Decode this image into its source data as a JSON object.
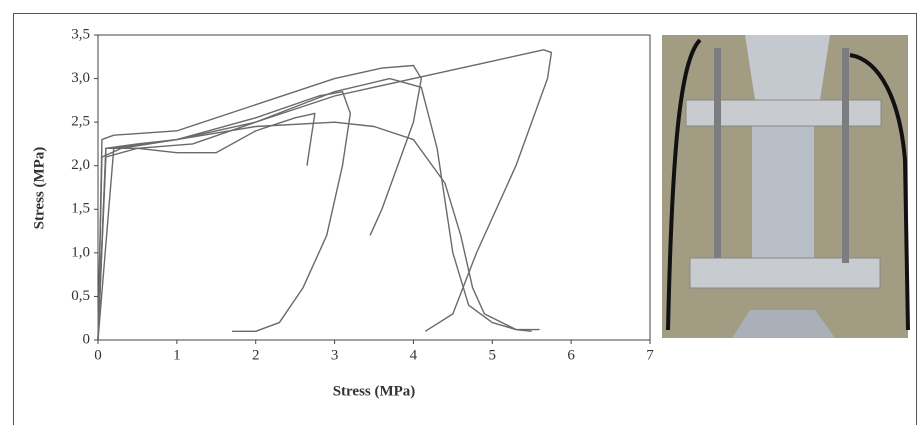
{
  "chart_data": {
    "type": "line",
    "xlabel": "Stress (MPa)",
    "ylabel": "Stress (MPa)",
    "xlim": [
      0,
      7
    ],
    "ylim": [
      0,
      3.5
    ],
    "xticks": [
      0,
      1,
      2,
      3,
      4,
      5,
      6,
      7
    ],
    "yticks": [
      0,
      {
        "value": 0.5,
        "label": "0,5"
      },
      {
        "value": 1,
        "label": "1,0"
      },
      {
        "value": 1.5,
        "label": "1,5"
      },
      {
        "value": 2,
        "label": "2,0"
      },
      {
        "value": 2.5,
        "label": "2,5"
      },
      {
        "value": 3,
        "label": "3,0"
      },
      {
        "value": 3.5,
        "label": "3,5"
      }
    ],
    "grid": false,
    "series": [
      {
        "color": "#6a6a6a",
        "x": [
          0,
          0.05,
          0.3,
          1,
          2,
          3,
          4,
          5,
          5.65,
          5.75,
          5.7,
          5.3,
          4.8,
          4.5,
          4.15
        ],
        "values": [
          0,
          2.1,
          2.2,
          2.3,
          2.5,
          2.8,
          3.0,
          3.2,
          3.33,
          3.3,
          3.0,
          2.0,
          1.0,
          0.3,
          0.1
        ]
      },
      {
        "color": "#6a6a6a",
        "x": [
          0,
          0.05,
          0.2,
          1,
          2,
          3,
          3.6,
          4.0,
          4.1,
          4.0,
          3.8,
          3.6,
          3.45
        ],
        "values": [
          0,
          2.3,
          2.35,
          2.4,
          2.7,
          3.0,
          3.12,
          3.15,
          3.0,
          2.5,
          2.0,
          1.5,
          1.2
        ]
      },
      {
        "color": "#6a6a6a",
        "x": [
          0,
          0.1,
          0.5,
          1,
          2,
          2.8,
          3.1,
          3.2,
          3.1,
          2.9,
          2.6,
          2.3,
          2.0,
          1.7
        ],
        "values": [
          0,
          2.2,
          2.25,
          2.3,
          2.55,
          2.8,
          2.85,
          2.6,
          2.0,
          1.2,
          0.6,
          0.2,
          0.1,
          0.1
        ]
      },
      {
        "color": "#6a6a6a",
        "x": [
          0,
          0.1,
          0.5,
          1.2,
          2,
          3,
          3.7,
          4.1,
          4.3,
          4.5,
          4.7,
          5.0,
          5.3,
          5.6
        ],
        "values": [
          0,
          2.1,
          2.2,
          2.25,
          2.5,
          2.85,
          3.0,
          2.9,
          2.2,
          1.0,
          0.4,
          0.2,
          0.12,
          0.12
        ]
      },
      {
        "color": "#6a6a6a",
        "x": [
          0,
          0.1,
          0.5,
          1,
          1.5,
          2,
          2.5,
          2.75,
          2.7,
          2.65
        ],
        "values": [
          0,
          2.2,
          2.2,
          2.15,
          2.15,
          2.4,
          2.55,
          2.6,
          2.3,
          2.0
        ]
      },
      {
        "color": "#6a6a6a",
        "x": [
          0,
          0.2,
          1,
          2,
          3,
          3.5,
          4,
          4.4,
          4.6,
          4.75,
          4.9,
          5.3,
          5.5
        ],
        "values": [
          0,
          2.2,
          2.3,
          2.45,
          2.5,
          2.45,
          2.3,
          1.8,
          1.2,
          0.6,
          0.3,
          0.12,
          0.1
        ]
      }
    ]
  }
}
